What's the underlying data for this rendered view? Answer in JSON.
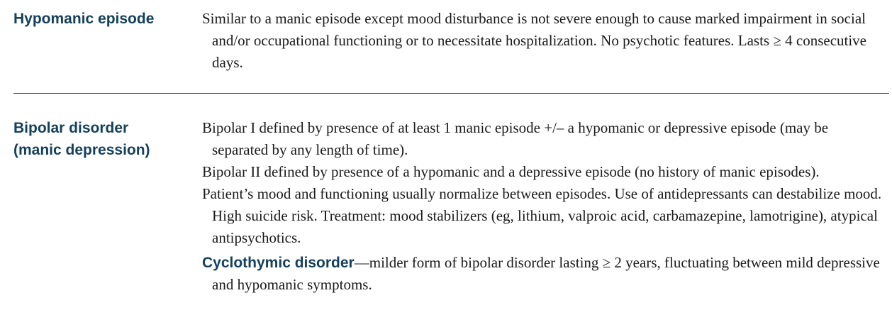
{
  "rows": [
    {
      "term": "Hypomanic episode",
      "paragraphs": [
        "Similar to a manic episode except mood disturbance is not severe enough to cause marked impairment in social and/or occupational functioning or to necessitate hospitalization. No psychotic features. Lasts ≥ 4 consecutive days."
      ]
    },
    {
      "term_line1": "Bipolar disorder",
      "term_line2": "(manic depression)",
      "paragraphs": [
        "Bipolar I defined by presence of at least 1 manic episode +/– a hypomanic or depressive episode (may be separated by any length of time).",
        "Bipolar II defined by presence of a hypomanic and a depressive episode (no history of manic episodes).",
        "Patient’s mood and functioning usually normalize between episodes. Use of antidepressants can destabilize mood. High suicide risk. Treatment: mood stabilizers (eg, lithium, valproic acid, carbamazepine, lamotrigine), atypical antipsychotics."
      ],
      "subentry": {
        "term": "Cyclothymic disorder",
        "text": "—milder form of bipolar disorder lasting ≥ 2 years, fluctuating between mild depressive and hypomanic symptoms."
      }
    }
  ]
}
